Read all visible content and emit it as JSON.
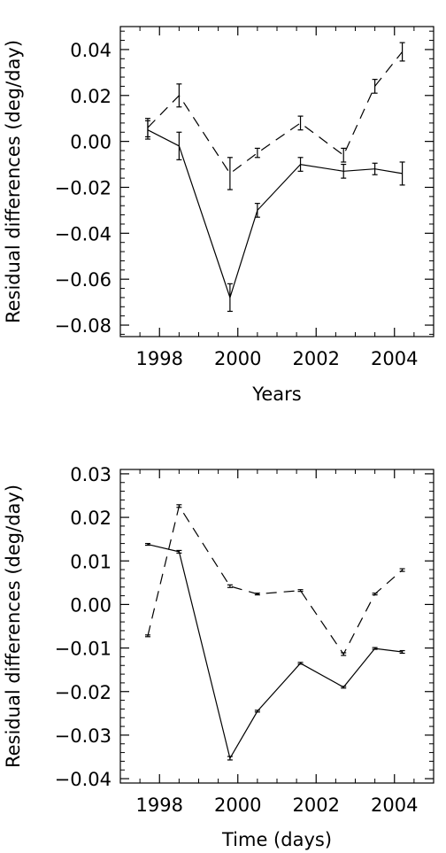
{
  "chart_data": [
    {
      "type": "line",
      "xlabel": "Years",
      "ylabel": "Residual differences (deg/day)",
      "xlim": [
        1997,
        2005
      ],
      "ylim": [
        -0.085,
        0.05
      ],
      "xticks": [
        1998,
        2000,
        2002,
        2004
      ],
      "xtick_labels": [
        "1998",
        "2000",
        "2002",
        "2004"
      ],
      "yticks": [
        -0.08,
        -0.06,
        -0.04,
        -0.02,
        0.0,
        0.02,
        0.04
      ],
      "ytick_labels": [
        "−0.08",
        "−0.06",
        "−0.04",
        "−0.02",
        "0.00",
        "0.02",
        "0.04"
      ],
      "grid": false,
      "series": [
        {
          "style": "solid",
          "x": [
            1997.7,
            1998.5,
            1999.8,
            2000.5,
            2001.6,
            2002.7,
            2003.5,
            2004.2
          ],
          "y": [
            0.005,
            -0.002,
            -0.068,
            -0.03,
            -0.01,
            -0.013,
            -0.012,
            -0.014
          ],
          "err": [
            0.004,
            0.006,
            0.006,
            0.003,
            0.003,
            0.003,
            0.0025,
            0.005
          ]
        },
        {
          "style": "dashed",
          "x": [
            1997.7,
            1998.5,
            1999.8,
            2000.5,
            2001.6,
            2002.7,
            2003.5,
            2004.2
          ],
          "y": [
            0.006,
            0.02,
            -0.014,
            -0.005,
            0.008,
            -0.006,
            0.024,
            0.039
          ],
          "err": [
            0.004,
            0.005,
            0.007,
            0.002,
            0.003,
            0.003,
            0.003,
            0.004
          ]
        }
      ]
    },
    {
      "type": "line",
      "xlabel": "Time (days)",
      "ylabel": "Residual differences (deg/day)",
      "xlim": [
        1997,
        2005
      ],
      "ylim": [
        -0.041,
        0.031
      ],
      "xticks": [
        1998,
        2000,
        2002,
        2004
      ],
      "xtick_labels": [
        "1998",
        "2000",
        "2002",
        "2004"
      ],
      "yticks": [
        -0.04,
        -0.03,
        -0.02,
        -0.01,
        0.0,
        0.01,
        0.02,
        0.03
      ],
      "ytick_labels": [
        "−0.04",
        "−0.03",
        "−0.02",
        "−0.01",
        "0.00",
        "0.01",
        "0.02",
        "0.03"
      ],
      "grid": false,
      "series": [
        {
          "style": "solid",
          "x": [
            1997.7,
            1998.5,
            1999.8,
            2000.5,
            2001.6,
            2002.7,
            2003.5,
            2004.2
          ],
          "y": [
            0.0138,
            0.0121,
            -0.0353,
            -0.0245,
            -0.0135,
            -0.019,
            -0.0101,
            -0.0109
          ],
          "err": [
            0.0002,
            0.0003,
            0.0004,
            0.0002,
            0.0002,
            0.0002,
            0.0002,
            0.0003
          ]
        },
        {
          "style": "dashed",
          "x": [
            1997.7,
            1998.5,
            1999.8,
            2000.5,
            2001.6,
            2002.7,
            2003.5,
            2004.2
          ],
          "y": [
            -0.0072,
            0.0226,
            0.0042,
            0.0024,
            0.0032,
            -0.0114,
            0.0024,
            0.0079
          ],
          "err": [
            0.0002,
            0.0003,
            0.0003,
            0.0002,
            0.0002,
            0.0003,
            0.0002,
            0.0003
          ]
        }
      ]
    }
  ]
}
